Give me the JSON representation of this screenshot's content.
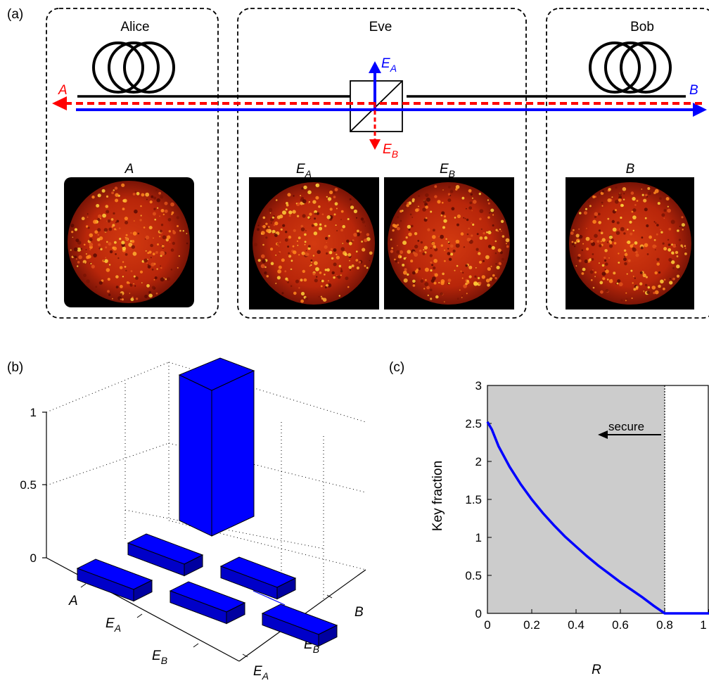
{
  "panel_a": {
    "label": "(a)",
    "boxes": [
      {
        "title": "Alice"
      },
      {
        "title": "Eve"
      },
      {
        "title": "Bob"
      }
    ],
    "beam_labels": {
      "A": "A",
      "B": "B",
      "EA": "E",
      "EA_sub": "A",
      "EB": "E",
      "EB_sub": "B"
    },
    "image_labels": [
      {
        "main": "A",
        "sub": ""
      },
      {
        "main": "E",
        "sub": "A"
      },
      {
        "main": "E",
        "sub": "B"
      },
      {
        "main": "B",
        "sub": ""
      }
    ],
    "colors": {
      "red": "#ff0000",
      "blue": "#0000ff"
    }
  },
  "panel_b": {
    "label": "(b)",
    "z_ticks": [
      "0",
      "0.5",
      "1"
    ],
    "z_range": [
      0,
      1
    ],
    "left_axis_ticks": [
      {
        "main": "A",
        "sub": ""
      },
      {
        "main": "E",
        "sub": "A"
      },
      {
        "main": "E",
        "sub": "B"
      }
    ],
    "right_axis_ticks": [
      {
        "main": "E",
        "sub": "A"
      },
      {
        "main": "E",
        "sub": "B"
      },
      {
        "main": "B",
        "sub": ""
      }
    ],
    "bar_color": "#0000ff",
    "bars": [
      {
        "row": "A",
        "col": "B",
        "value": 1.0
      },
      {
        "row": "A",
        "col": "E_A",
        "value": 0.02
      },
      {
        "row": "A",
        "col": "E_B",
        "value": 0.02
      },
      {
        "row": "E_A",
        "col": "E_B",
        "value": 0.02
      },
      {
        "row": "E_A",
        "col": "B",
        "value": 0.02
      },
      {
        "row": "E_B",
        "col": "B",
        "value": 0.02
      }
    ]
  },
  "panel_c": {
    "label": "(c)",
    "ylabel": "Key fraction",
    "xlabel": "R",
    "annotation": "secure",
    "x_ticks": [
      "0",
      "0.2",
      "0.4",
      "0.6",
      "0.8",
      "1"
    ],
    "y_ticks": [
      "0",
      "0.5",
      "1",
      "1.5",
      "2",
      "2.5",
      "3"
    ]
  },
  "chart_data": {
    "type": "line",
    "xlabel": "R",
    "ylabel": "Key fraction",
    "xlim": [
      0,
      1
    ],
    "ylim": [
      0,
      3
    ],
    "secure_region": [
      0,
      0.8
    ],
    "secure_color": "#cccccc",
    "line_color": "#0000ff",
    "series": [
      {
        "x": [
          0,
          0.02,
          0.05,
          0.1,
          0.15,
          0.2,
          0.25,
          0.3,
          0.35,
          0.4,
          0.45,
          0.5,
          0.55,
          0.6,
          0.65,
          0.7,
          0.75,
          0.78,
          0.8,
          0.85,
          0.9,
          0.95,
          1.0
        ],
        "y": [
          2.52,
          2.42,
          2.2,
          1.93,
          1.7,
          1.5,
          1.32,
          1.16,
          1.01,
          0.88,
          0.75,
          0.63,
          0.52,
          0.41,
          0.31,
          0.21,
          0.1,
          0.04,
          0.0,
          0.0,
          0.0,
          0.0,
          0.0
        ]
      }
    ]
  }
}
